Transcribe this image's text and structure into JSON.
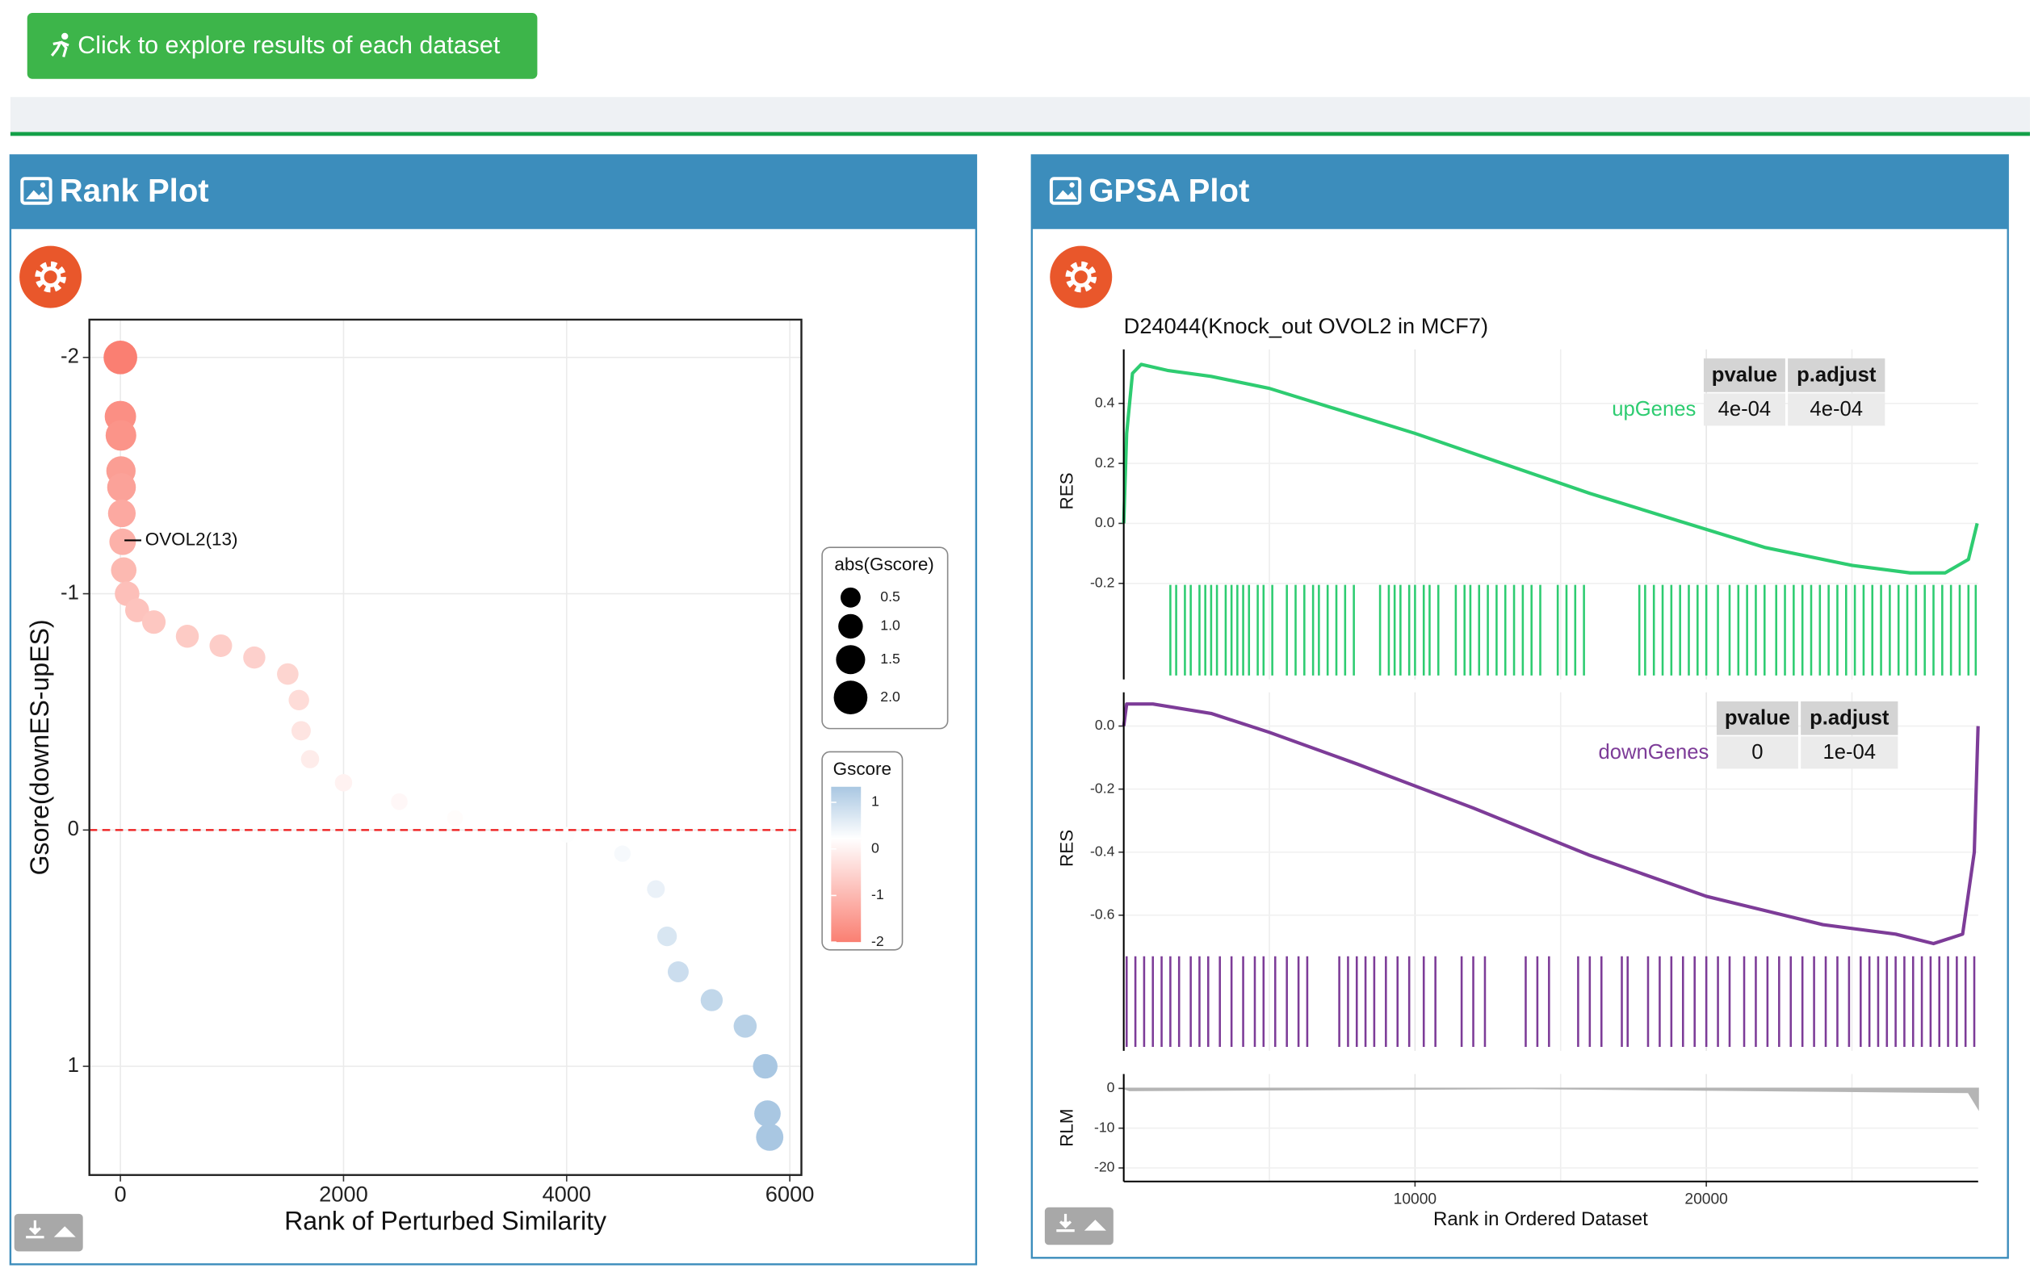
{
  "button": {
    "label": "Click to explore results of each dataset"
  },
  "panels": [
    {
      "title": "Rank Plot"
    },
    {
      "title": "GPSA Plot"
    }
  ],
  "chart_data": [
    {
      "type": "scatter",
      "x_label": "Rank of Perturbed Similarity",
      "y_label": "Gsore(downES-upES)",
      "x": [
        0,
        0,
        5,
        5,
        10,
        13,
        20,
        30,
        60,
        150,
        300,
        600,
        900,
        1200,
        1500,
        1600,
        1620,
        1700,
        2000,
        2500,
        3000,
        3500,
        4000,
        4500,
        4800,
        4900,
        5000,
        5300,
        5600,
        5780,
        5800,
        5820
      ],
      "y": [
        -2.0,
        -1.75,
        -1.67,
        -1.52,
        -1.45,
        -1.34,
        -1.22,
        -1.1,
        -1.0,
        -0.93,
        -0.88,
        -0.82,
        -0.78,
        -0.73,
        -0.66,
        -0.55,
        -0.42,
        -0.3,
        -0.2,
        -0.12,
        -0.05,
        -0.01,
        0.02,
        0.1,
        0.25,
        0.45,
        0.6,
        0.72,
        0.83,
        1.0,
        1.2,
        1.3
      ],
      "xlim": [
        -278,
        6104
      ],
      "ylim": [
        -2.16,
        1.46
      ],
      "y_reversed": true,
      "xticks": [
        0,
        2000,
        4000,
        6000
      ],
      "yticks": [
        -2,
        -1,
        0,
        1
      ],
      "grid": true,
      "hline": 0,
      "annotation": {
        "text": "OVOL2(13)",
        "x": 13,
        "y": -1.226
      },
      "size_legend": {
        "title": "abs(Gscore)",
        "values": [
          0.5,
          {
            "value": 1,
            "label": "1.0"
          },
          1.5,
          {
            "value": 2,
            "label": "2.0"
          }
        ]
      },
      "color_legend": {
        "title": "Gscore",
        "ticks": [
          1,
          0,
          -1,
          -2
        ],
        "low": "#fa7f72",
        "mid": "#ffffff",
        "high": "#a9c7e2"
      }
    },
    {
      "type": "line",
      "title": "D24044(Knock_out OVOL2 in MCF7)",
      "y_label": "RES",
      "x": [
        0,
        100,
        300,
        600,
        1500,
        3000,
        5000,
        8000,
        10000,
        13000,
        16000,
        19000,
        22000,
        25000,
        27000,
        28200,
        29000,
        29300
      ],
      "series": [
        {
          "name": "upGenes",
          "color": "#2ecc71",
          "values": [
            0.0,
            0.3,
            0.5,
            0.53,
            0.51,
            0.49,
            0.45,
            0.36,
            0.3,
            0.2,
            0.1,
            0.01,
            -0.08,
            -0.14,
            -0.165,
            -0.165,
            -0.12,
            0.0
          ]
        }
      ],
      "hits": [
        1600,
        1800,
        2100,
        2300,
        2600,
        2800,
        3000,
        3200,
        3500,
        3700,
        3900,
        4100,
        4300,
        4600,
        4800,
        5100,
        5600,
        5900,
        6200,
        6500,
        6700,
        7000,
        7300,
        7600,
        7900,
        8800,
        9100,
        9300,
        9500,
        9800,
        10000,
        10300,
        10500,
        10800,
        11400,
        11700,
        11900,
        12200,
        12500,
        12800,
        13100,
        13400,
        13700,
        14000,
        14300,
        14900,
        15200,
        15500,
        15800,
        17700,
        17900,
        18200,
        18500,
        18800,
        19100,
        19400,
        19700,
        20000,
        20400,
        20800,
        21100,
        21400,
        21700,
        22000,
        22400,
        22700,
        23000,
        23300,
        23600,
        23900,
        24200,
        24500,
        24800,
        25100,
        25400,
        25700,
        26000,
        26300,
        26600,
        26900,
        27200,
        27500,
        27800,
        28100,
        28400,
        28700,
        29000,
        29250
      ],
      "xlim": [
        0,
        29333
      ],
      "ylim": [
        -0.52,
        0.58
      ],
      "yticks": [
        0.4,
        0.2,
        {
          "value": 0,
          "label": "0.0"
        },
        -0.2
      ],
      "table": {
        "columns": [
          "pvalue",
          "p.adjust"
        ],
        "rows": [
          {
            "name": "upGenes",
            "cells": [
              "4e-04",
              "4e-04"
            ]
          }
        ]
      }
    },
    {
      "type": "line",
      "y_label": "RES",
      "x": [
        0,
        100,
        1000,
        3000,
        5000,
        8000,
        12000,
        16000,
        20000,
        24000,
        26500,
        27800,
        28800,
        29200,
        29330
      ],
      "series": [
        {
          "name": "downGenes",
          "color": "#7d3c98",
          "values": [
            0.0,
            0.07,
            0.07,
            0.04,
            -0.02,
            -0.12,
            -0.26,
            -0.41,
            -0.54,
            -0.63,
            -0.66,
            -0.69,
            -0.66,
            -0.4,
            0.0
          ]
        }
      ],
      "hits": [
        100,
        400,
        700,
        1000,
        1300,
        1600,
        1900,
        2300,
        2600,
        2900,
        3300,
        3700,
        4100,
        4500,
        4800,
        5200,
        5600,
        6000,
        6300,
        7400,
        7700,
        8000,
        8300,
        8600,
        9000,
        9400,
        9800,
        10300,
        10700,
        11600,
        12000,
        12400,
        13800,
        14200,
        14600,
        15600,
        16000,
        16400,
        17100,
        17300,
        18000,
        18400,
        18800,
        19200,
        19600,
        20000,
        20400,
        20800,
        21300,
        21700,
        22100,
        22500,
        22900,
        23300,
        23700,
        24100,
        24500,
        24900,
        25300,
        25600,
        25900,
        26200,
        26500,
        26800,
        27100,
        27400,
        27700,
        28000,
        28300,
        28600,
        28900,
        29200
      ],
      "xlim": [
        0,
        29333
      ],
      "ylim": [
        -1.03,
        0.107
      ],
      "yticks": [
        {
          "value": 0,
          "label": "0.0"
        },
        -0.2,
        -0.4,
        -0.6
      ],
      "table": {
        "columns": [
          "pvalue",
          "p.adjust"
        ],
        "rows": [
          {
            "name": "downGenes",
            "cells": [
              "0",
              "1e-04"
            ]
          }
        ]
      }
    },
    {
      "type": "area",
      "y_label": "RLM",
      "x_label": "Rank in Ordered Dataset",
      "x": [
        0,
        200,
        14000,
        29000,
        29333
      ],
      "values": [
        0,
        -0.5,
        0,
        -1,
        -5
      ],
      "color": "#b5b5b5",
      "xlim": [
        0,
        29333
      ],
      "ylim": [
        -23.4,
        3.6
      ],
      "xticks": [
        10000,
        20000
      ],
      "x_minor_grid": [
        5000,
        15000,
        25000
      ],
      "yticks": [
        0,
        -10,
        -20
      ]
    }
  ]
}
